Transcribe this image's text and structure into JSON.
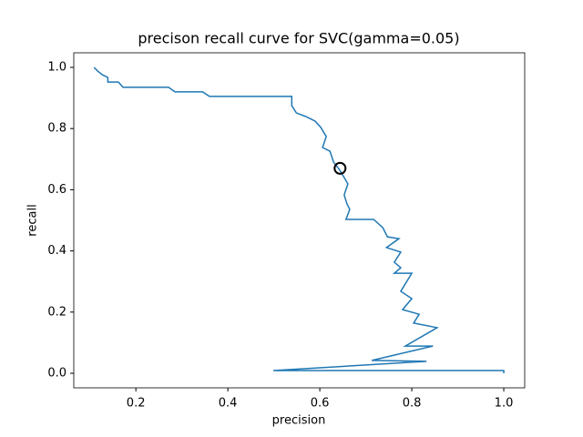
{
  "chart_data": {
    "type": "line",
    "title": "precison recall curve for SVC(gamma=0.05)",
    "xlabel": "precision",
    "ylabel": "recall",
    "xlim": [
      0.065,
      1.0455
    ],
    "ylim": [
      -0.0476,
      1.0476
    ],
    "xticks": [
      0.2,
      0.4,
      0.6,
      0.8,
      {
        "value": 1,
        "label": "1.0"
      }
    ],
    "yticks": [
      {
        "value": 0,
        "label": "0.0"
      },
      0.2,
      0.4,
      0.6,
      0.8,
      {
        "value": 1,
        "label": "1.0"
      }
    ],
    "series": [
      {
        "color": "#1f77b4",
        "x": [
          0.109,
          0.117,
          0.127,
          0.139,
          0.139,
          0.162,
          0.172,
          0.271,
          0.285,
          0.345,
          0.36,
          0.539,
          0.539,
          0.549,
          0.57,
          0.59,
          0.602,
          0.614,
          0.606,
          0.622,
          0.63,
          0.642,
          0.653,
          0.661,
          0.653,
          0.659,
          0.665,
          0.657,
          0.717,
          0.737,
          0.747,
          0.772,
          0.745,
          0.776,
          0.762,
          0.776,
          0.762,
          0.8,
          0.776,
          0.8,
          0.78,
          0.816,
          0.804,
          0.855,
          0.786,
          0.846,
          0.713,
          0.832,
          0.499,
          1.0,
          1.0
        ],
        "values": [
          1.0,
          0.988,
          0.976,
          0.967,
          0.952,
          0.952,
          0.935,
          0.935,
          0.92,
          0.92,
          0.905,
          0.905,
          0.875,
          0.851,
          0.839,
          0.824,
          0.804,
          0.774,
          0.738,
          0.726,
          0.69,
          0.667,
          0.64,
          0.619,
          0.583,
          0.554,
          0.536,
          0.503,
          0.503,
          0.476,
          0.446,
          0.44,
          0.411,
          0.396,
          0.363,
          0.345,
          0.327,
          0.327,
          0.268,
          0.244,
          0.208,
          0.193,
          0.164,
          0.149,
          0.089,
          0.089,
          0.042,
          0.039,
          0.009,
          0.009,
          0.0
        ]
      }
    ],
    "marker": {
      "x": 0.644,
      "y": 0.67,
      "color": "#000000"
    }
  }
}
